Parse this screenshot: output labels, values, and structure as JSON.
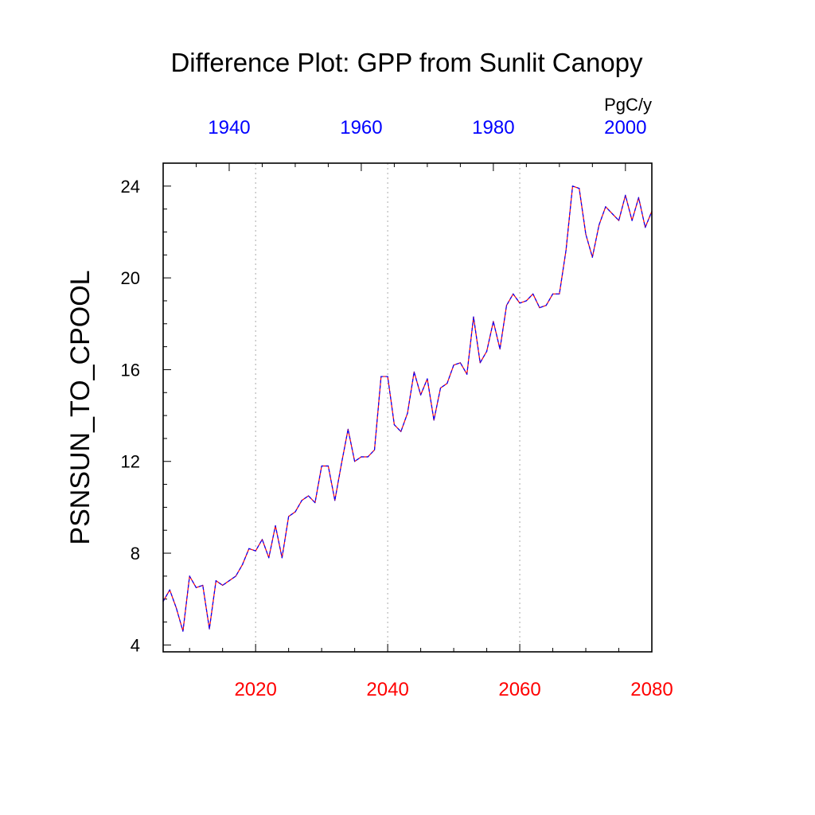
{
  "chart_data": {
    "type": "line",
    "title": "Difference Plot: GPP from Sunlit Canopy",
    "units": "PgC/y",
    "ylabel": "PSNSUN_TO_CPOOL",
    "ylim": [
      3.7,
      25
    ],
    "yticks": [
      4,
      8,
      12,
      16,
      20,
      24
    ],
    "yticklabels": [
      "4",
      "8",
      "12",
      "16",
      "20",
      "24"
    ],
    "x_bottom": {
      "range": [
        2006,
        2080
      ],
      "ticks": [
        2020,
        2040,
        2060,
        2080
      ],
      "ticklabels": [
        "2020",
        "2040",
        "2060",
        "2080"
      ],
      "color": "#ff0000"
    },
    "x_top": {
      "range": [
        1930,
        2004
      ],
      "ticks": [
        1940,
        1960,
        1980,
        2000
      ],
      "ticklabels": [
        "1940",
        "1960",
        "1980",
        "2000"
      ],
      "color": "#0000ff"
    },
    "grid_x": [
      2020,
      2040,
      2060
    ],
    "series": [
      {
        "name": "difference",
        "color_a": "#ff0000",
        "color_b": "#0000ff",
        "x": [
          2006,
          2007,
          2008,
          2009,
          2010,
          2011,
          2012,
          2013,
          2014,
          2015,
          2016,
          2017,
          2018,
          2019,
          2020,
          2021,
          2022,
          2023,
          2024,
          2025,
          2026,
          2027,
          2028,
          2029,
          2030,
          2031,
          2032,
          2033,
          2034,
          2035,
          2036,
          2037,
          2038,
          2039,
          2040,
          2041,
          2042,
          2043,
          2044,
          2045,
          2046,
          2047,
          2048,
          2049,
          2050,
          2051,
          2052,
          2053,
          2054,
          2055,
          2056,
          2057,
          2058,
          2059,
          2060,
          2061,
          2062,
          2063,
          2064,
          2065,
          2066,
          2067,
          2068,
          2069,
          2070,
          2071,
          2072,
          2073,
          2074,
          2075,
          2076,
          2077,
          2078,
          2079,
          2080
        ],
        "values": [
          5.9,
          6.4,
          5.6,
          4.6,
          7.0,
          6.5,
          6.6,
          4.7,
          6.8,
          6.6,
          6.8,
          7.0,
          7.5,
          8.2,
          8.1,
          8.6,
          7.8,
          9.2,
          7.8,
          9.6,
          9.8,
          10.3,
          10.5,
          10.2,
          11.8,
          11.8,
          10.3,
          11.9,
          13.4,
          12.0,
          12.2,
          12.2,
          12.5,
          15.7,
          15.7,
          13.6,
          13.3,
          14.1,
          15.9,
          14.9,
          15.6,
          13.8,
          15.2,
          15.4,
          16.2,
          16.3,
          15.8,
          18.3,
          16.3,
          16.8,
          18.1,
          16.9,
          18.8,
          19.3,
          18.9,
          19.0,
          19.3,
          18.7,
          18.8,
          19.3,
          19.3,
          21.2,
          24.0,
          23.9,
          21.9,
          20.9,
          22.3,
          23.1,
          22.8,
          22.5,
          23.6,
          22.5,
          23.5,
          22.2,
          22.9
        ]
      }
    ]
  }
}
